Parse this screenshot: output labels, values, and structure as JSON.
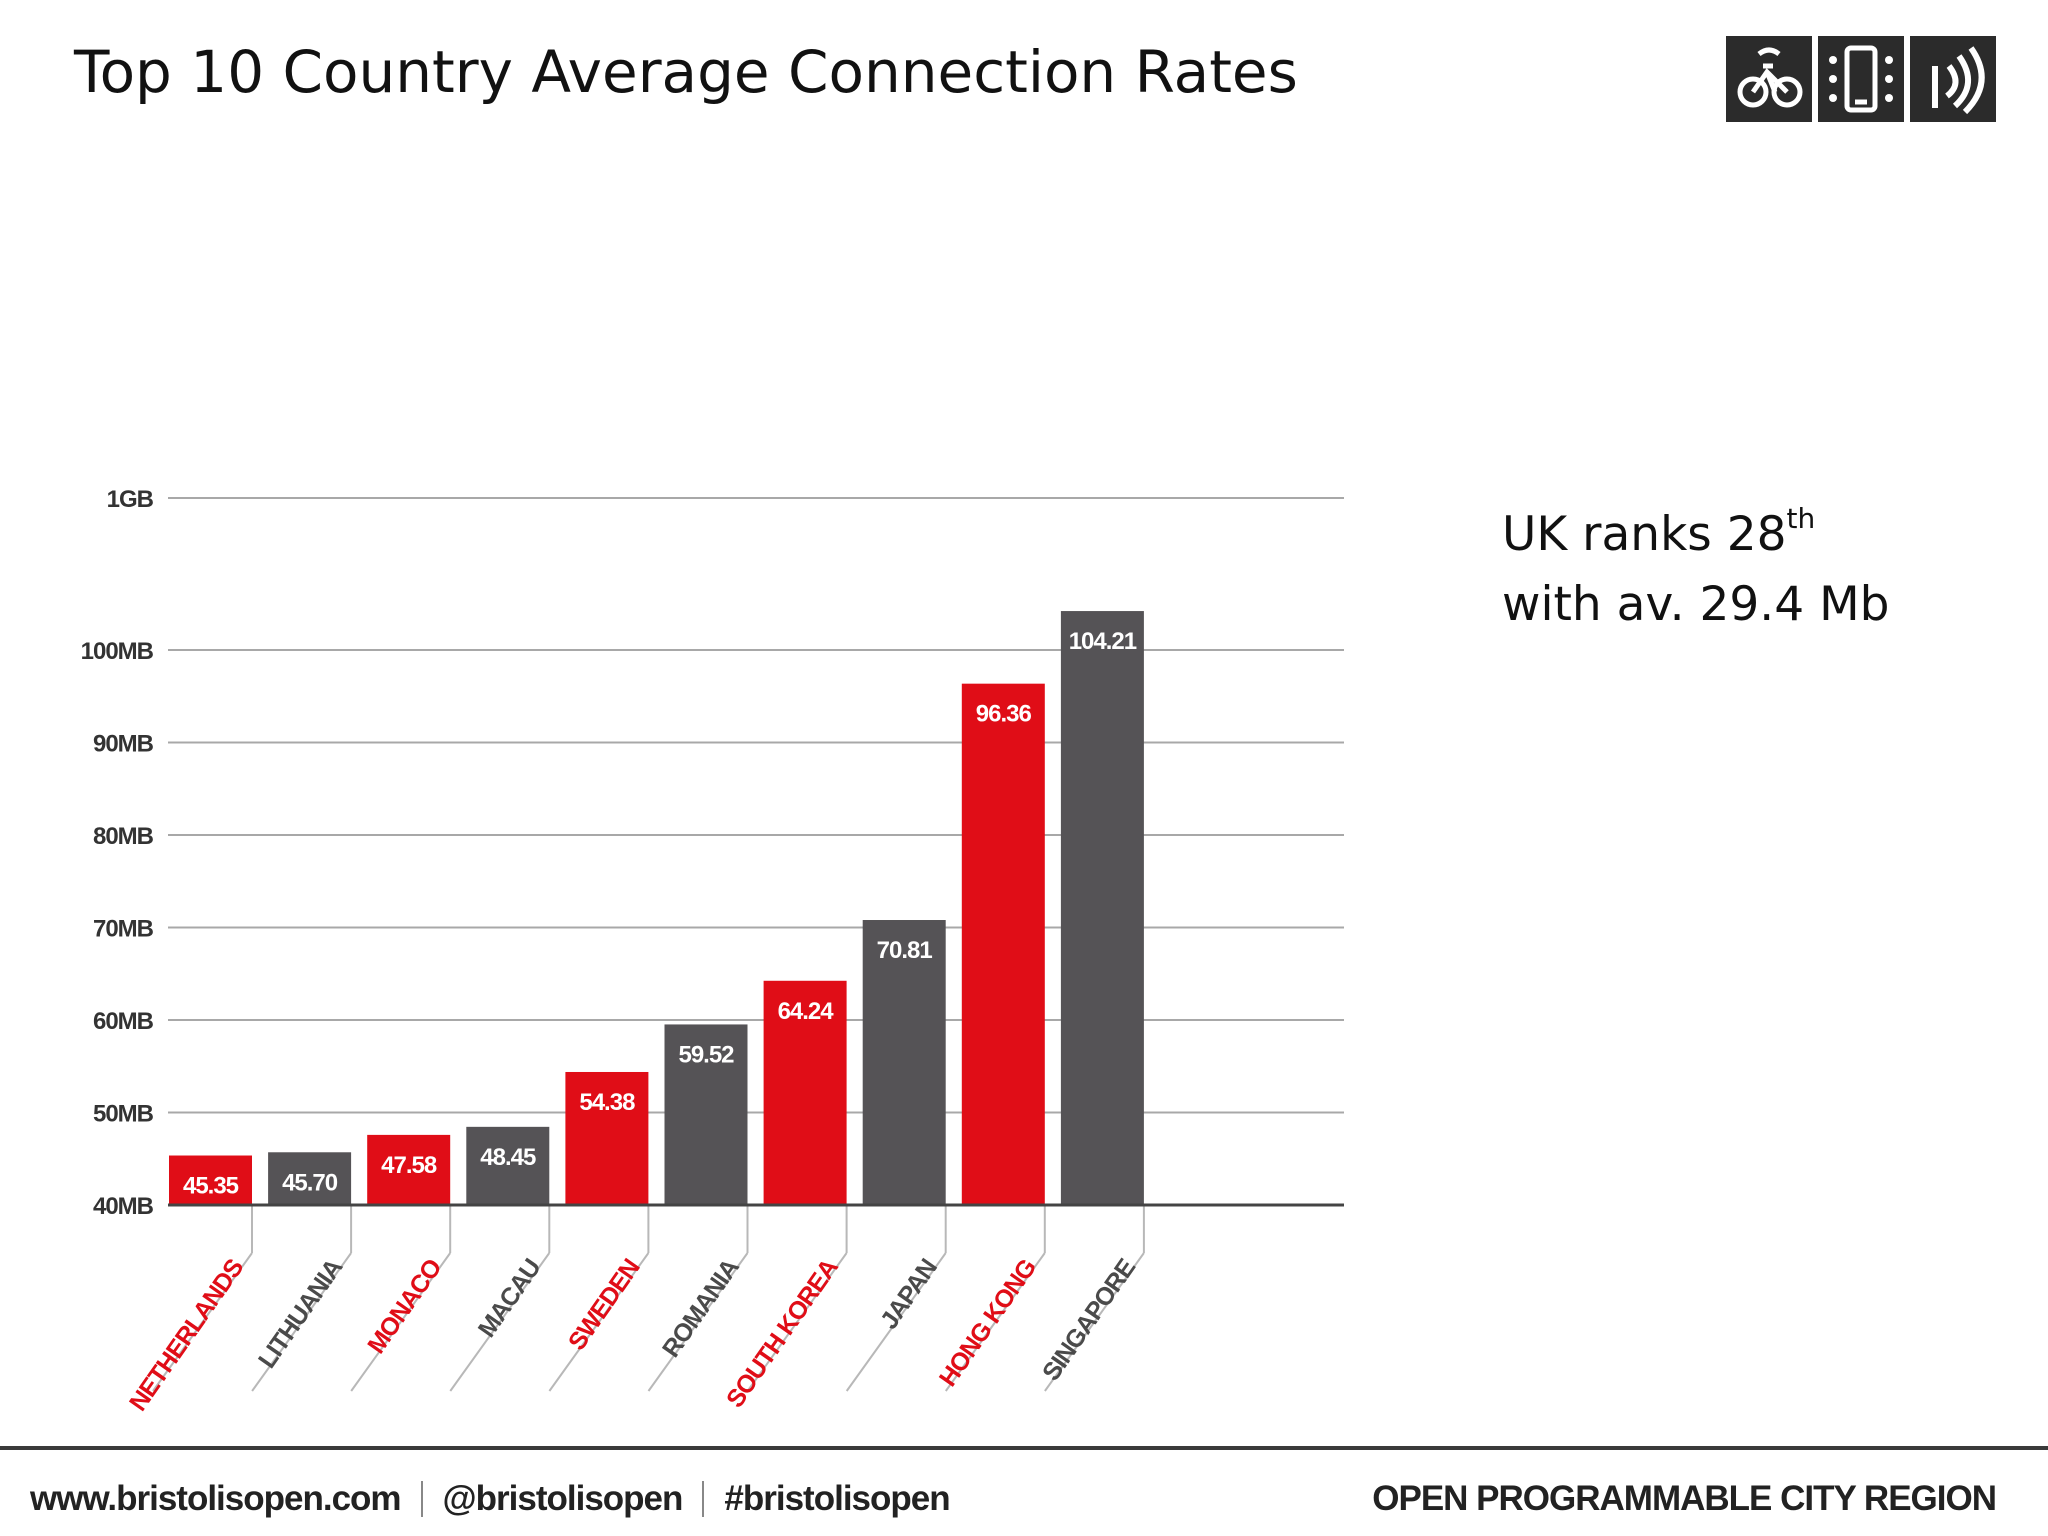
{
  "slide": {
    "title": "Top 10 Country Average Connection Rates",
    "note": {
      "line1_prefix": "UK ranks 28",
      "line1_superscript": "th",
      "line2": "with av. 29.4 Mb"
    }
  },
  "logo": {
    "tiles": [
      "bicycle-icon",
      "mobile-phone-icon",
      "wireless-signal-icon"
    ]
  },
  "footer": {
    "website": "www.bristolisopen.com",
    "handle": "@bristolisopen",
    "hashtag": "#bristolisopen",
    "tagline": "OPEN PROGRAMMABLE CITY REGION"
  },
  "colors": {
    "highlight": "#e00d17",
    "neutral": "#555356",
    "grid": "#a8a8a8",
    "axis": "#444444",
    "tick_text": "#333333"
  },
  "chart_data": {
    "type": "bar",
    "title": "",
    "xlabel": "",
    "ylabel": "",
    "categories": [
      "NETHERLANDS",
      "LITHUANIA",
      "MONACO",
      "MACAU",
      "SWEDEN",
      "ROMANIA",
      "SOUTH KOREA",
      "JAPAN",
      "HONG KONG",
      "SINGAPORE"
    ],
    "values": [
      45.35,
      45.7,
      47.58,
      48.45,
      54.38,
      59.52,
      64.24,
      70.81,
      96.36,
      104.21
    ],
    "value_labels": [
      "45.35",
      "45.70",
      "47.58",
      "48.45",
      "54.38",
      "59.52",
      "64.24",
      "70.81",
      "96.36",
      "104.21"
    ],
    "highlighted": [
      true,
      false,
      true,
      false,
      true,
      false,
      true,
      false,
      true,
      false
    ],
    "y_ticks": [
      {
        "value": 40,
        "label": "40MB"
      },
      {
        "value": 50,
        "label": "50MB"
      },
      {
        "value": 60,
        "label": "60MB"
      },
      {
        "value": 70,
        "label": "70MB"
      },
      {
        "value": 80,
        "label": "80MB"
      },
      {
        "value": 90,
        "label": "90MB"
      },
      {
        "value": 100,
        "label": "100MB"
      }
    ],
    "y_top_label": "1GB",
    "ylim": [
      40,
      1000
    ],
    "grid": true,
    "legend": "none"
  }
}
